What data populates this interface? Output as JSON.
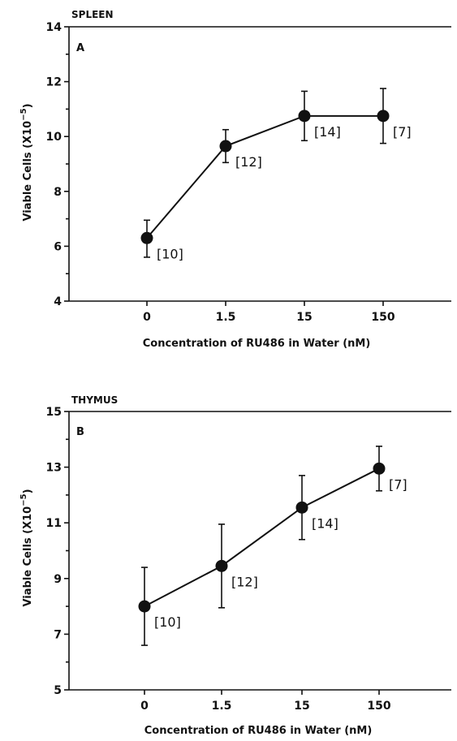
{
  "chart_data": [
    {
      "type": "line",
      "title": "SPLEEN",
      "panel_letter": "A",
      "xlabel": "Concentration of RU486 in Water (nM)",
      "ylabel": "Viable Cells (X10",
      "ylabel_exponent": "−5",
      "ylabel_close": ")",
      "categories": [
        "0",
        "1.5",
        "15",
        "150"
      ],
      "values": [
        6.3,
        9.65,
        10.75,
        10.75
      ],
      "error_low": [
        5.6,
        9.05,
        9.85,
        9.75
      ],
      "error_high": [
        6.95,
        10.25,
        11.65,
        11.75
      ],
      "n_labels": [
        "[10]",
        "[12]",
        "[14]",
        "[7]"
      ],
      "ylim": [
        4,
        14
      ],
      "yticks": [
        "4",
        "6",
        "8",
        "10",
        "12",
        "14"
      ],
      "grid": false
    },
    {
      "type": "line",
      "title": "THYMUS",
      "panel_letter": "B",
      "xlabel": "Concentration of RU486 in Water (nM)",
      "ylabel": "Viable Cells (X10",
      "ylabel_exponent": "−5",
      "ylabel_close": ")",
      "categories": [
        "0",
        "1.5",
        "15",
        "150"
      ],
      "values": [
        8.0,
        9.45,
        11.55,
        12.95
      ],
      "error_low": [
        6.6,
        7.95,
        10.4,
        12.15
      ],
      "error_high": [
        9.4,
        10.95,
        12.7,
        13.75
      ],
      "n_labels": [
        "[10]",
        "[12]",
        "[14]",
        "[7]"
      ],
      "ylim": [
        5,
        15
      ],
      "yticks": [
        "5",
        "7",
        "9",
        "11",
        "13",
        "15"
      ],
      "grid": false
    }
  ]
}
